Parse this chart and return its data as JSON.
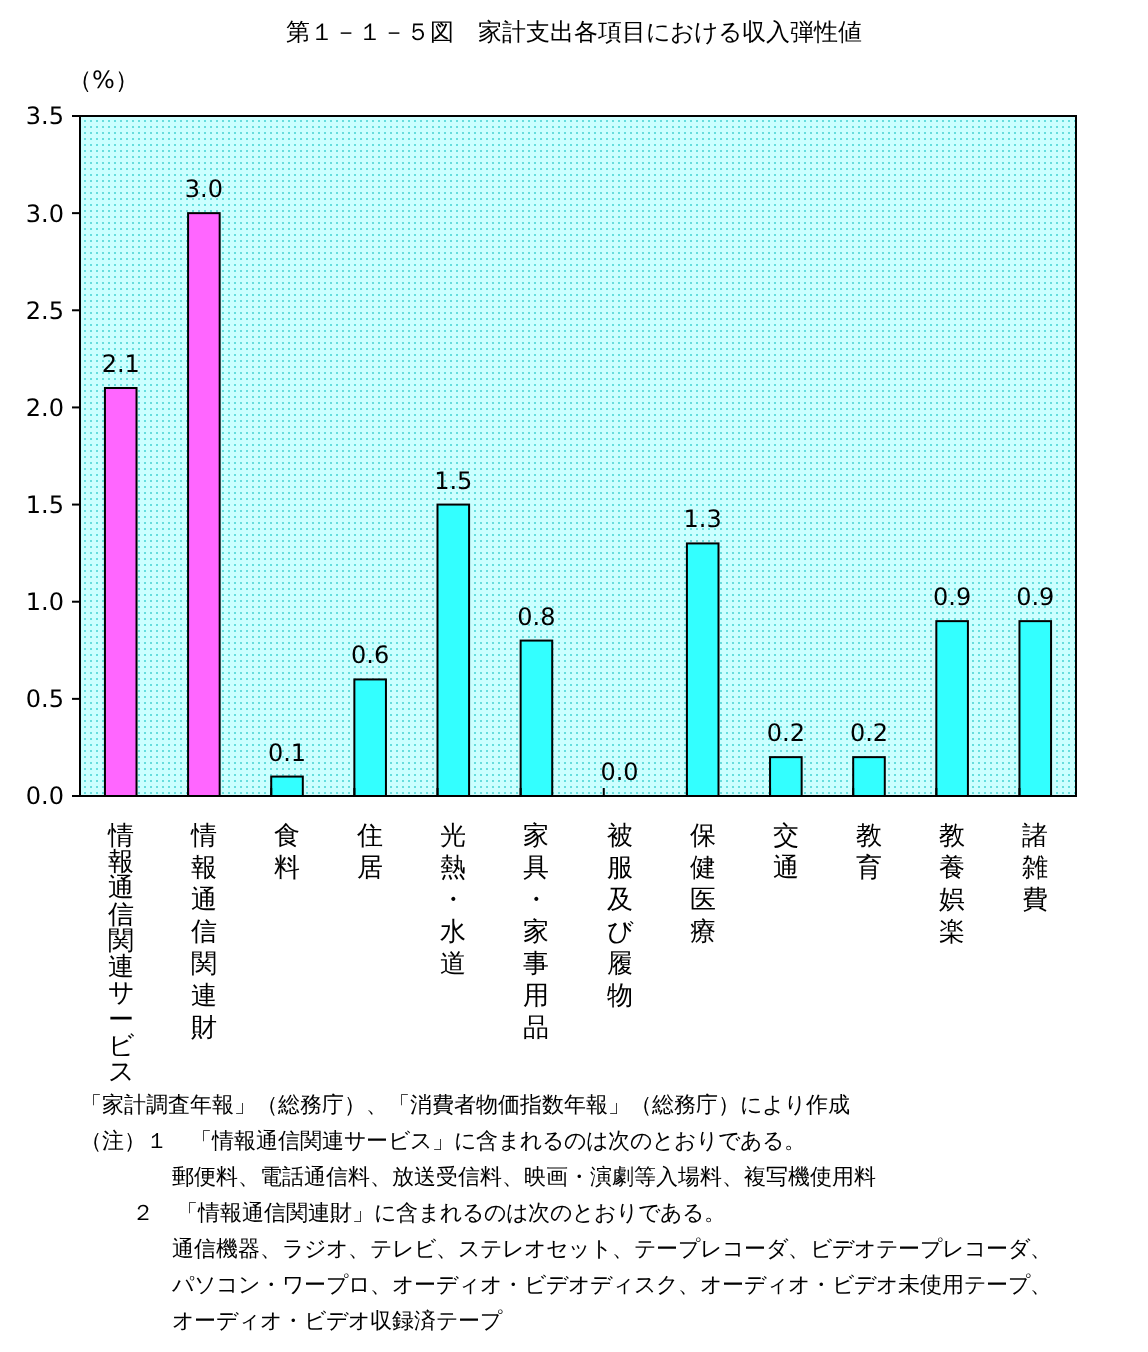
{
  "chart_data": {
    "type": "bar",
    "title": "第１－１－５図　家計支出各項目における収入弾性値",
    "ylabel": "（%）",
    "categories": [
      "情報通信関連サービス",
      "情報通信関連財",
      "食料",
      "住居",
      "光熱・水道",
      "家具・家事用品",
      "被服及び履物",
      "保健医療",
      "交通",
      "教育",
      "教養娯楽",
      "諸雑費"
    ],
    "values": [
      2.1,
      3.0,
      0.1,
      0.6,
      1.5,
      0.8,
      0.0,
      1.3,
      0.2,
      0.2,
      0.9,
      0.9
    ],
    "colors": [
      "#ff66ff",
      "#ff66ff",
      "#33ffff",
      "#33ffff",
      "#33ffff",
      "#33ffff",
      "#33ffff",
      "#33ffff",
      "#33ffff",
      "#33ffff",
      "#33ffff",
      "#33ffff"
    ],
    "value_labels": [
      "2.1",
      "3.0",
      "0.1",
      "0.6",
      "1.5",
      "0.8",
      "0.0",
      "1.3",
      "0.2",
      "0.2",
      "0.9",
      "0.9"
    ],
    "ylim": [
      0,
      3.5
    ],
    "yticks": [
      {
        "value": 0,
        "label": "0.0"
      },
      {
        "value": 0.5,
        "label": "0.5"
      },
      {
        "value": 1,
        "label": "1.0"
      },
      {
        "value": 1.5,
        "label": "1.5"
      },
      {
        "value": 2,
        "label": "2.0"
      },
      {
        "value": 2.5,
        "label": "2.5"
      },
      {
        "value": 3,
        "label": "3.0"
      },
      {
        "value": 3.5,
        "label": "3.5"
      }
    ],
    "grid": false,
    "annotations": [
      "「家計調査年報」（総務庁）、「消費者物価指数年報」（総務庁）により作成",
      "（注）１　「情報通信関連サービス」に含まれるのは次のとおりである。",
      "郵便料、電話通信料、放送受信料、映画・演劇等入場料、複写機使用料",
      "２　「情報通信関連財」に含まれるのは次のとおりである。",
      "通信機器、ラジオ、テレビ、ステレオセット、テープレコーダ、ビデオテープレコーダ、",
      "パソコン・ワープロ、オーディオ・ビデオディスク、オーディオ・ビデオ未使用テープ、",
      "オーディオ・ビデオ収録済テープ"
    ]
  }
}
